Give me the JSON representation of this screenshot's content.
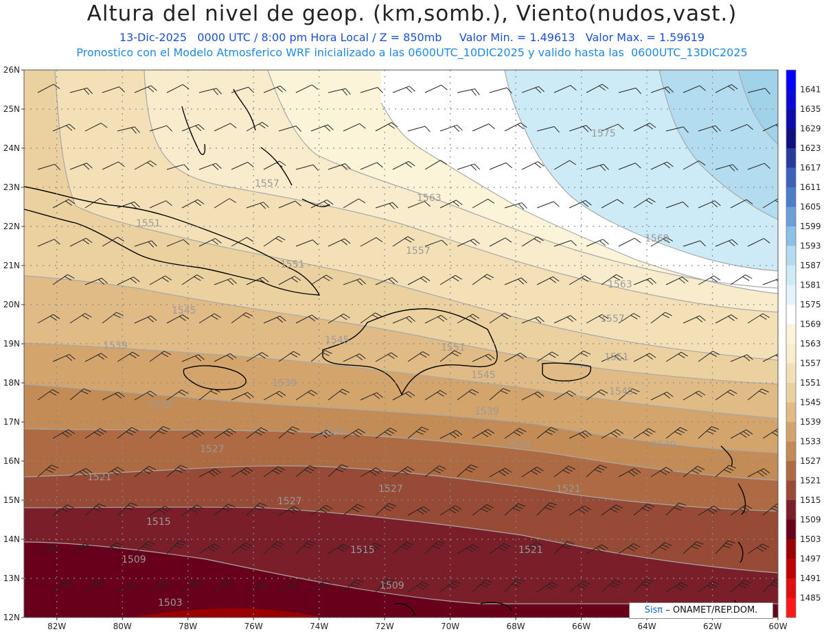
{
  "header": {
    "title": "Altura del nivel de geop. (km,somb.), Viento(nudos,vast.)",
    "subtitle_line1": "13-Dic-2025   0000 UTC / 8:00 pm Hora Local / Z = 850mb     Valor Min. = 1.49613   Valor Max. = 1.59619",
    "subtitle_line2": "Pronostico con el Modelo Atmosferico WRF inicializado a las 0600UTC_10DIC2025 y valido hasta las  0600UTC_13DIC2025"
  },
  "credit": {
    "brand": "Sisπ",
    "text": "– ONAMET/REP.DOM."
  },
  "axes": {
    "lat_labels": [
      "26N",
      "25N",
      "24N",
      "23N",
      "22N",
      "21N",
      "20N",
      "19N",
      "18N",
      "17N",
      "16N",
      "15N",
      "14N",
      "13N",
      "12N"
    ],
    "lon_labels": [
      "82W",
      "80W",
      "78W",
      "76W",
      "74W",
      "72W",
      "70W",
      "68W",
      "66W",
      "64W",
      "62W",
      "60W"
    ]
  },
  "colorbar": {
    "levels": [
      "1641",
      "1635",
      "1629",
      "1623",
      "1617",
      "1611",
      "1605",
      "1599",
      "1593",
      "1587",
      "1581",
      "1575",
      "1569",
      "1563",
      "1557",
      "1551",
      "1545",
      "1539",
      "1533",
      "1527",
      "1521",
      "1515",
      "1509",
      "1503",
      "1497",
      "1491",
      "1485"
    ],
    "colors": [
      "#0000ff",
      "#0a0ad8",
      "#0c0cae",
      "#101080",
      "#283c9c",
      "#3a62b8",
      "#4b7ec8",
      "#6aa0d8",
      "#8cc0e6",
      "#b4dcf0",
      "#cdebf6",
      "#e4f4fa",
      "#ffffff",
      "#fbf4d8",
      "#f8eccc",
      "#f3e0b6",
      "#ecd1a0",
      "#e0bb86",
      "#d3a46c",
      "#c38b55",
      "#ae6a42",
      "#974a36",
      "#7a1f2a",
      "#68001c",
      "#9a0000",
      "#c00000",
      "#e01010",
      "#ff1818"
    ]
  },
  "contour_labels": [
    "1557",
    "1563",
    "1575",
    "1551",
    "1557",
    "1569",
    "1551",
    "1563",
    "1545",
    "1557",
    "1545",
    "1551",
    "1539",
    "1551",
    "1545",
    "1539",
    "1545",
    "1533",
    "1539",
    "1533",
    "1527",
    "1533",
    "1539",
    "1521",
    "1527",
    "1521",
    "1527",
    "1515",
    "1515",
    "1521",
    "1509",
    "1503",
    "1509"
  ]
}
